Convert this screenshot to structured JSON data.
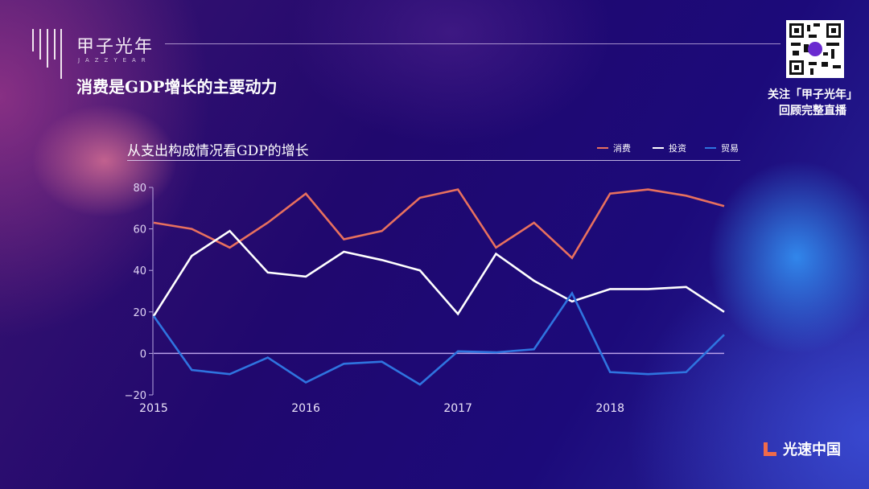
{
  "brand": {
    "name_cn": "甲子光年",
    "name_en": "JAZZYEAR"
  },
  "slide_title": "消费是GDP增长的主要动力",
  "qr": {
    "caption_line1": "关注「甲子光年」",
    "caption_line2": "回顾完整直播"
  },
  "footer_logo": "光速中国",
  "chart_data": {
    "type": "line",
    "title": "从支出构成情况看GDP的增长",
    "xlabel": "",
    "ylabel": "",
    "x": [
      2015,
      2015.25,
      2015.5,
      2015.75,
      2016,
      2016.25,
      2016.5,
      2016.75,
      2017,
      2017.25,
      2017.5,
      2017.75,
      2018,
      2018.25,
      2018.5,
      2018.75
    ],
    "xticks": [
      "2015",
      "2016",
      "2017",
      "2018"
    ],
    "yticks": [
      "80",
      "60",
      "40",
      "20",
      "0",
      "−20"
    ],
    "ylim": [
      -20,
      80
    ],
    "grid": false,
    "legend": "top-right",
    "series": [
      {
        "name": "消费",
        "color": "#e8705e",
        "values": [
          63,
          60,
          51,
          63,
          77,
          55,
          59,
          75,
          79,
          51,
          63,
          46,
          77,
          79,
          76,
          71
        ]
      },
      {
        "name": "投资",
        "color": "#ffffff",
        "values": [
          18,
          47,
          59,
          39,
          37,
          49,
          45,
          40,
          19,
          48,
          35,
          25,
          31,
          31,
          32,
          20
        ]
      },
      {
        "name": "贸易",
        "color": "#2f74e0",
        "values": [
          18,
          -8,
          -10,
          -2,
          -14,
          -5,
          -4,
          -15,
          1,
          0.5,
          2,
          29,
          -9,
          -10,
          -9,
          9
        ]
      }
    ]
  }
}
